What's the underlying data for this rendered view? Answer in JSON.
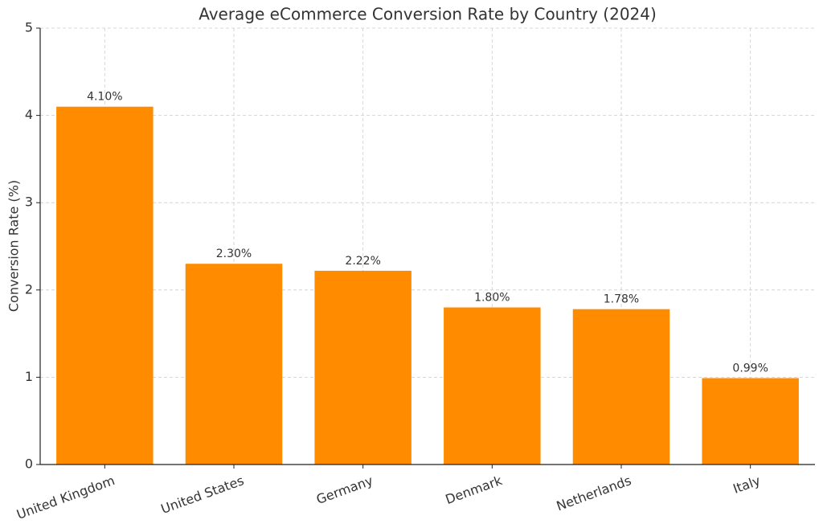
{
  "chart_data": {
    "type": "bar",
    "title": "Average eCommerce Conversion Rate by Country (2024)",
    "y_label": "Conversion Rate (%)",
    "categories": [
      "United Kingdom",
      "United States",
      "Germany",
      "Denmark",
      "Netherlands",
      "Italy"
    ],
    "values": [
      4.1,
      2.3,
      2.22,
      1.8,
      1.78,
      0.99
    ],
    "value_labels": [
      "4.10%",
      "2.30%",
      "2.22%",
      "1.80%",
      "1.78%",
      "0.99%"
    ],
    "color": "#ff8c00",
    "ylim": [
      0,
      5
    ],
    "yticks": [
      0,
      1,
      2,
      3,
      4,
      5
    ],
    "grid": true
  }
}
